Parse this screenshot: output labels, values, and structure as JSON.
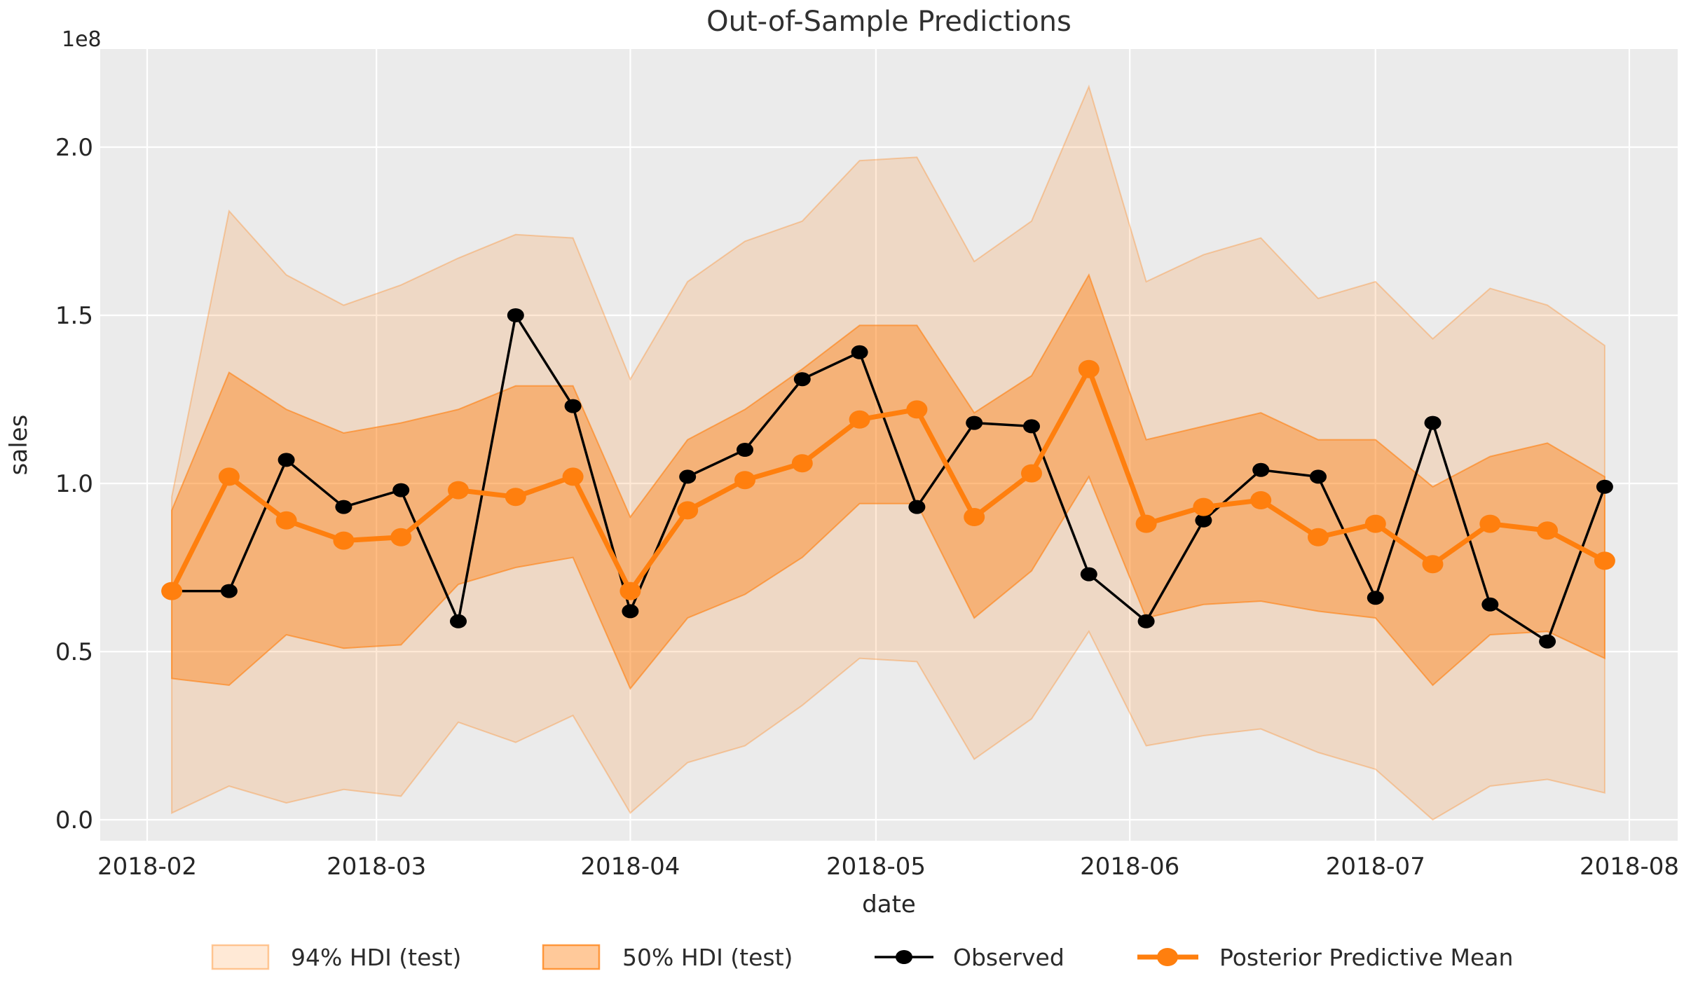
{
  "figure": {
    "title": "Out-of-Sample Predictions",
    "offset_text": "1e8"
  },
  "axes": {
    "xlabel": "date",
    "ylabel": "sales",
    "x_tick_labels": [
      "2018-02",
      "2018-03",
      "2018-04",
      "2018-05",
      "2018-06",
      "2018-07",
      "2018-08"
    ],
    "y_tick_labels": [
      "0.0",
      "0.5",
      "1.0",
      "1.5",
      "2.0"
    ],
    "y_tick_values": [
      0.0,
      0.5,
      1.0,
      1.5,
      2.0
    ]
  },
  "legend": {
    "items": [
      {
        "label": "94% HDI (test)",
        "type": "patch-light"
      },
      {
        "label": "50% HDI (test)",
        "type": "patch-dark"
      },
      {
        "label": "Observed",
        "type": "line-black"
      },
      {
        "label": "Posterior Predictive Mean",
        "type": "line-orange"
      }
    ]
  },
  "colors": {
    "plot_bg": "#ebebeb",
    "grid": "#ffffff",
    "orange": "#ff7f0e",
    "black": "#000000",
    "text": "#262626",
    "band94_fill": "rgba(255,127,14,0.17)",
    "band94_edge": "rgba(255,127,14,0.32)",
    "band50_fill": "rgba(255,127,14,0.42)",
    "band50_edge": "rgba(255,127,14,0.60)"
  },
  "chart_data": {
    "type": "line",
    "title": "Out-of-Sample Predictions",
    "xlabel": "date",
    "ylabel": "sales",
    "y_scale_factor": "1e8",
    "ylim": [
      -0.0625,
      2.29
    ],
    "x_range": [
      "2018-02-01",
      "2018-08-01"
    ],
    "grid": true,
    "legend_position": "bottom",
    "x": [
      "2018-02-04",
      "2018-02-11",
      "2018-02-18",
      "2018-02-25",
      "2018-03-04",
      "2018-03-11",
      "2018-03-18",
      "2018-03-25",
      "2018-04-01",
      "2018-04-08",
      "2018-04-15",
      "2018-04-22",
      "2018-04-29",
      "2018-05-06",
      "2018-05-13",
      "2018-05-20",
      "2018-05-27",
      "2018-06-03",
      "2018-06-10",
      "2018-06-17",
      "2018-06-24",
      "2018-07-01",
      "2018-07-08",
      "2018-07-15",
      "2018-07-22",
      "2018-07-29"
    ],
    "series": [
      {
        "name": "Observed",
        "values": [
          0.68,
          0.68,
          1.07,
          0.93,
          0.98,
          0.59,
          1.5,
          1.23,
          0.62,
          1.02,
          1.1,
          1.31,
          1.39,
          0.93,
          1.18,
          1.17,
          0.73,
          0.59,
          0.89,
          1.04,
          1.02,
          0.66,
          1.18,
          0.64,
          0.53,
          0.99
        ]
      },
      {
        "name": "Posterior Predictive Mean",
        "values": [
          0.68,
          1.02,
          0.89,
          0.83,
          0.84,
          0.98,
          0.96,
          1.02,
          0.68,
          0.92,
          1.01,
          1.06,
          1.19,
          1.22,
          0.9,
          1.03,
          1.34,
          0.88,
          0.93,
          0.95,
          0.84,
          0.88,
          0.76,
          0.88,
          0.86,
          0.77
        ]
      },
      {
        "name": "50% HDI (test) low",
        "values": [
          0.42,
          0.4,
          0.55,
          0.51,
          0.52,
          0.7,
          0.75,
          0.78,
          0.39,
          0.6,
          0.67,
          0.78,
          0.94,
          0.94,
          0.6,
          0.74,
          1.02,
          0.6,
          0.64,
          0.65,
          0.62,
          0.6,
          0.4,
          0.55,
          0.56,
          0.48
        ]
      },
      {
        "name": "50% HDI (test) high",
        "values": [
          0.92,
          1.33,
          1.22,
          1.15,
          1.18,
          1.22,
          1.29,
          1.29,
          0.9,
          1.13,
          1.22,
          1.34,
          1.47,
          1.47,
          1.21,
          1.32,
          1.62,
          1.13,
          1.17,
          1.21,
          1.13,
          1.13,
          0.99,
          1.08,
          1.12,
          1.02
        ]
      },
      {
        "name": "94% HDI (test) low",
        "values": [
          0.02,
          0.1,
          0.05,
          0.09,
          0.07,
          0.29,
          0.23,
          0.31,
          0.02,
          0.17,
          0.22,
          0.34,
          0.48,
          0.47,
          0.18,
          0.3,
          0.56,
          0.22,
          0.25,
          0.27,
          0.2,
          0.15,
          0.0,
          0.1,
          0.12,
          0.08
        ]
      },
      {
        "name": "94% HDI (test) high",
        "values": [
          0.96,
          1.81,
          1.62,
          1.53,
          1.59,
          1.67,
          1.74,
          1.73,
          1.31,
          1.6,
          1.72,
          1.78,
          1.96,
          1.97,
          1.66,
          1.78,
          2.18,
          1.6,
          1.68,
          1.73,
          1.55,
          1.6,
          1.43,
          1.58,
          1.53,
          1.41
        ]
      }
    ]
  }
}
